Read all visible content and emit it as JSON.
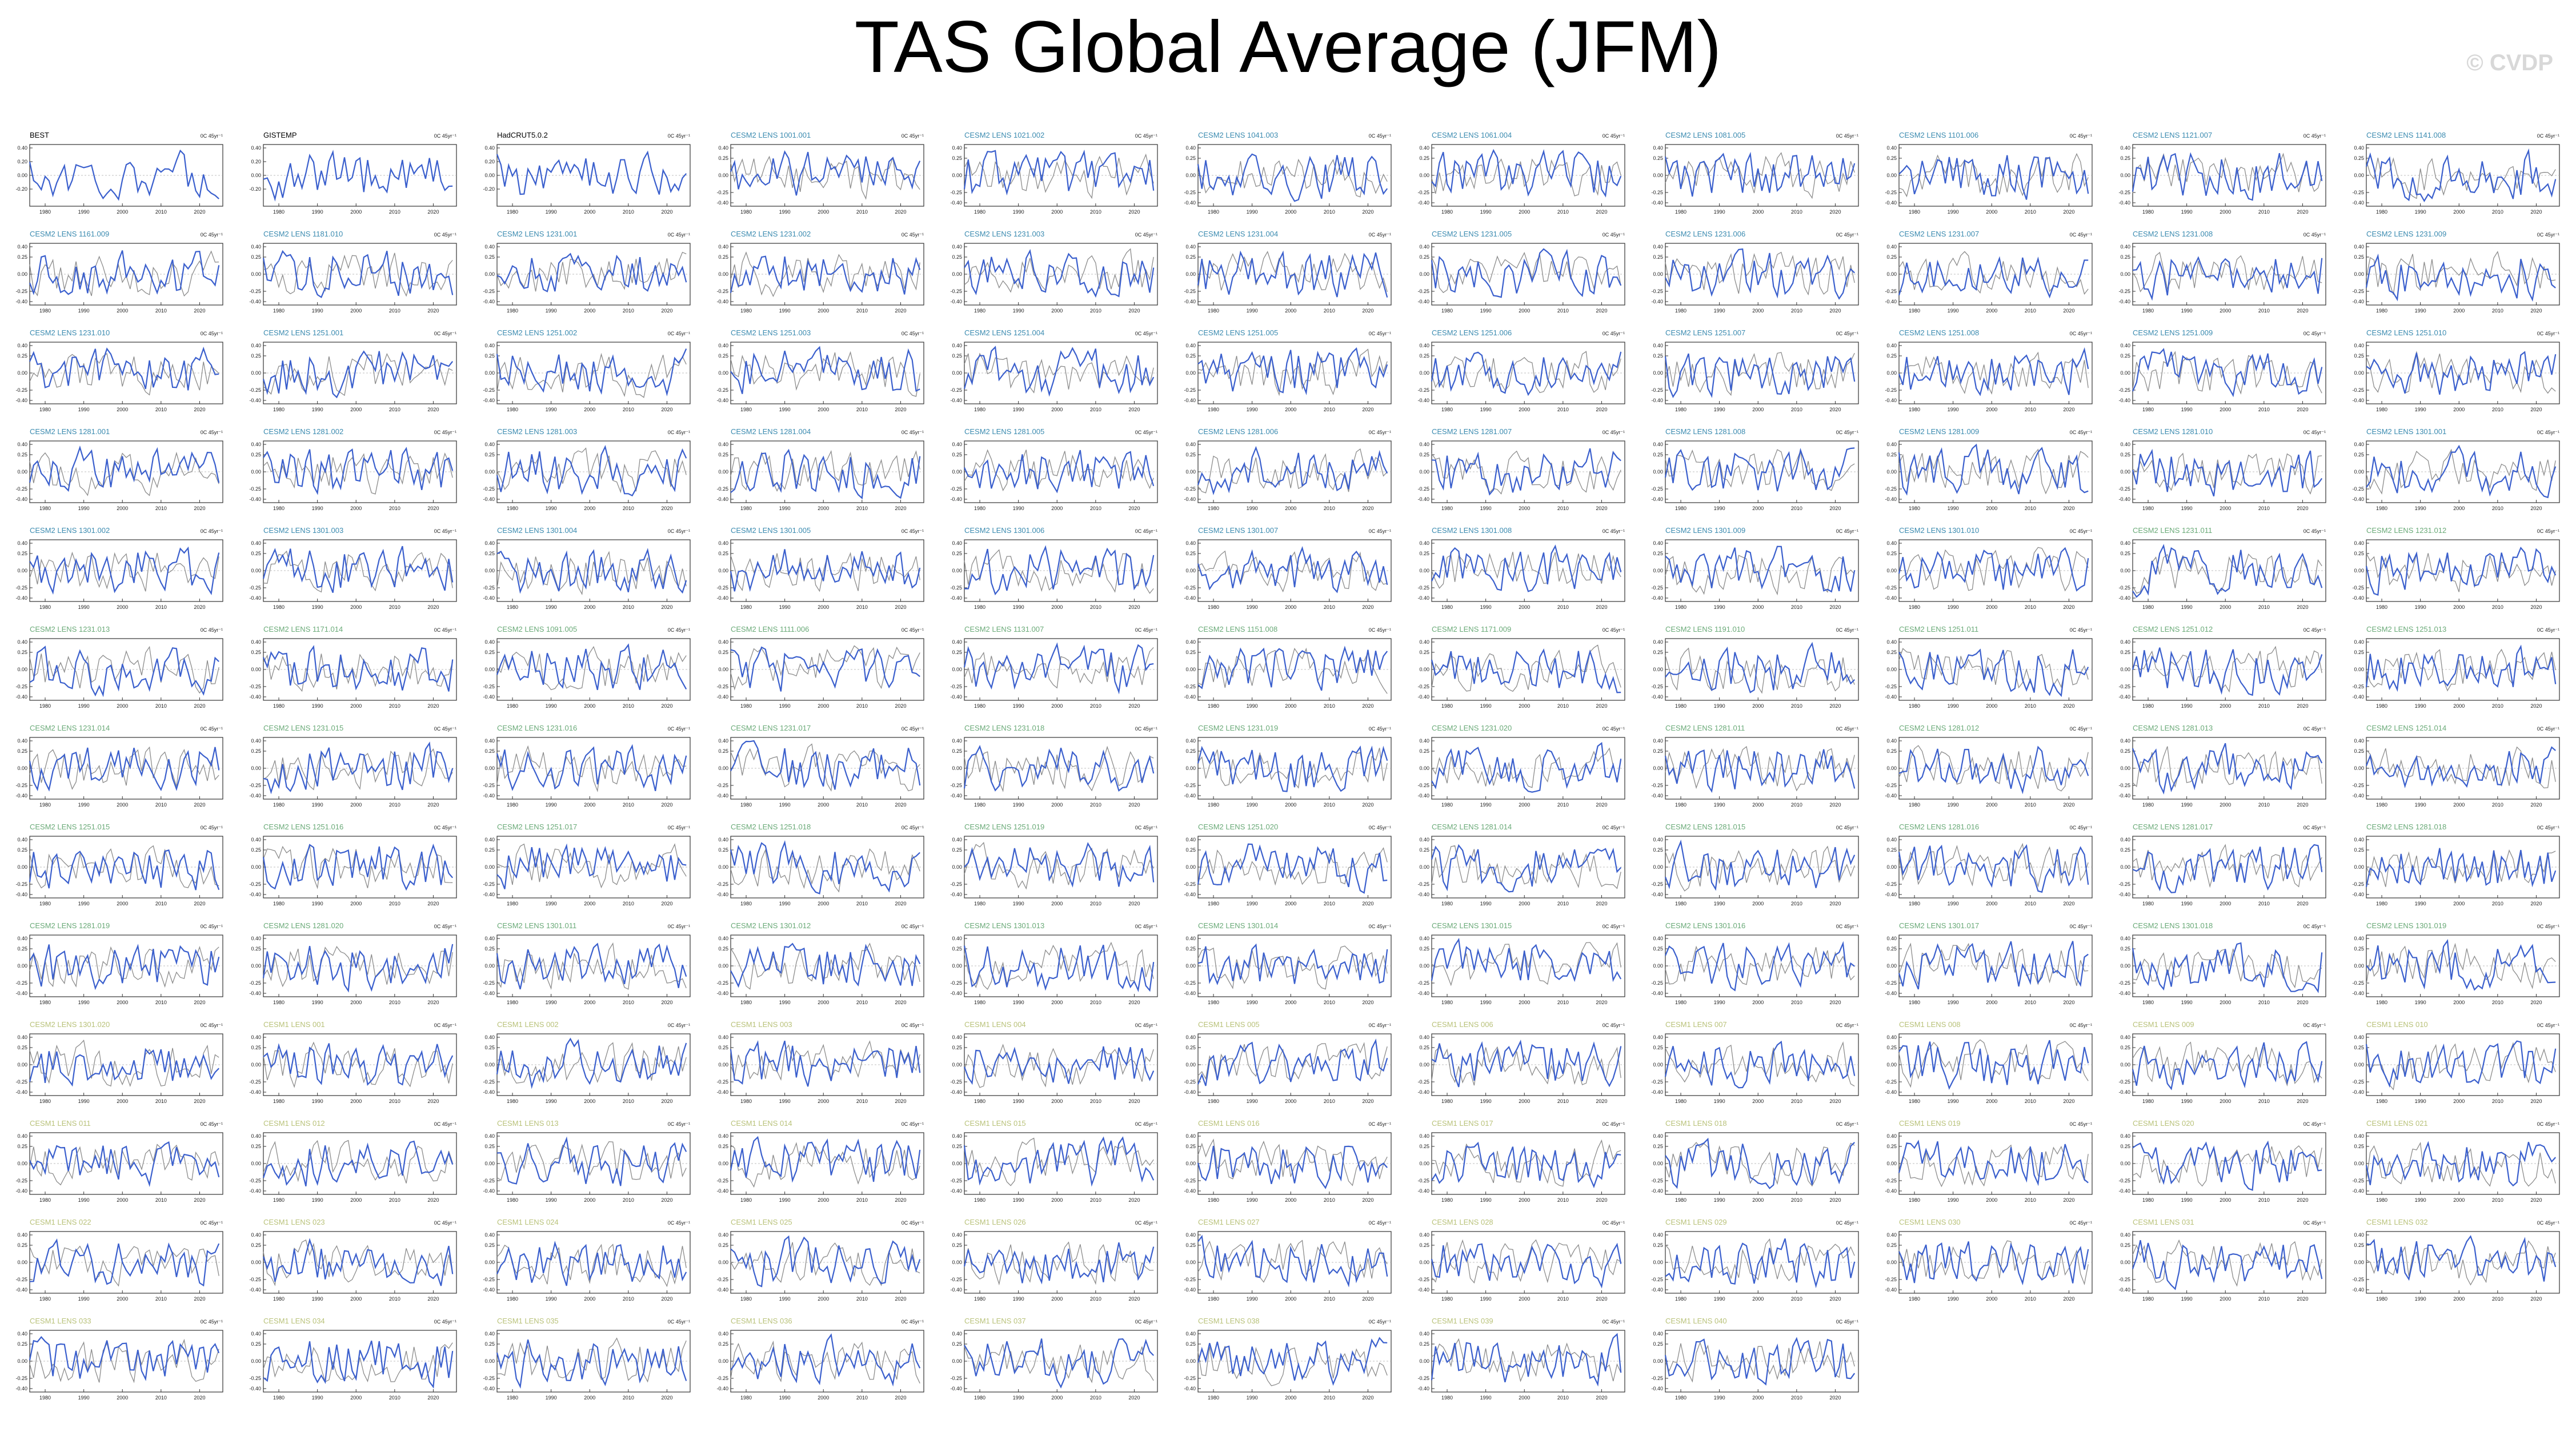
{
  "page": {
    "title": "TAS Global Average (JFM)",
    "watermark": "© CVDP"
  },
  "colors": {
    "observed_line": "#3a5fcd",
    "reference_line": "#8c8c8c",
    "title_obs": "#000000",
    "title_family_1": "#3b8bb0",
    "title_family_2": "#6aaa78",
    "title_family_3": "#b9c27a",
    "frame": "#333333",
    "zero_line": "#aaaaaa"
  },
  "chart_data": {
    "type": "line",
    "layout": "small-multiples",
    "rows": 13,
    "columns": 11,
    "unit_label": "0C 45yr⁻¹",
    "x_ticks": [
      "1980",
      "1990",
      "2000",
      "2010",
      "2020"
    ],
    "xlim": [
      1976,
      2026
    ],
    "y_ticks_short": [
      "0.40",
      "0.20",
      "0.00",
      "-0.20"
    ],
    "y_ticks_full": [
      "0.40",
      "0.25",
      "0.00",
      "-0.25",
      "-0.40"
    ],
    "ylim": [
      -0.45,
      0.45
    ],
    "years_start": 1976,
    "years_count": 50,
    "series_description": "each panel: blue = member time series, gray = ensemble reference",
    "panels": [
      {
        "title": "BEST",
        "family": 0
      },
      {
        "title": "GISTEMP",
        "family": 0
      },
      {
        "title": "HadCRUT5.0.2",
        "family": 0
      },
      {
        "title": "CESM2 LENS 1001.001",
        "family": 1
      },
      {
        "title": "CESM2 LENS 1021.002",
        "family": 1
      },
      {
        "title": "CESM2 LENS 1041.003",
        "family": 1
      },
      {
        "title": "CESM2 LENS 1061.004",
        "family": 1
      },
      {
        "title": "CESM2 LENS 1081.005",
        "family": 1
      },
      {
        "title": "CESM2 LENS 1101.006",
        "family": 1
      },
      {
        "title": "CESM2 LENS 1121.007",
        "family": 1
      },
      {
        "title": "CESM2 LENS 1141.008",
        "family": 1
      },
      {
        "title": "CESM2 LENS 1161.009",
        "family": 1
      },
      {
        "title": "CESM2 LENS 1181.010",
        "family": 1
      },
      {
        "title": "CESM2 LENS 1231.001",
        "family": 1
      },
      {
        "title": "CESM2 LENS 1231.002",
        "family": 1
      },
      {
        "title": "CESM2 LENS 1231.003",
        "family": 1
      },
      {
        "title": "CESM2 LENS 1231.004",
        "family": 1
      },
      {
        "title": "CESM2 LENS 1231.005",
        "family": 1
      },
      {
        "title": "CESM2 LENS 1231.006",
        "family": 1
      },
      {
        "title": "CESM2 LENS 1231.007",
        "family": 1
      },
      {
        "title": "CESM2 LENS 1231.008",
        "family": 1
      },
      {
        "title": "CESM2 LENS 1231.009",
        "family": 1
      },
      {
        "title": "CESM2 LENS 1231.010",
        "family": 1
      },
      {
        "title": "CESM2 LENS 1251.001",
        "family": 1
      },
      {
        "title": "CESM2 LENS 1251.002",
        "family": 1
      },
      {
        "title": "CESM2 LENS 1251.003",
        "family": 1
      },
      {
        "title": "CESM2 LENS 1251.004",
        "family": 1
      },
      {
        "title": "CESM2 LENS 1251.005",
        "family": 1
      },
      {
        "title": "CESM2 LENS 1251.006",
        "family": 1
      },
      {
        "title": "CESM2 LENS 1251.007",
        "family": 1
      },
      {
        "title": "CESM2 LENS 1251.008",
        "family": 1
      },
      {
        "title": "CESM2 LENS 1251.009",
        "family": 1
      },
      {
        "title": "CESM2 LENS 1251.010",
        "family": 1
      },
      {
        "title": "CESM2 LENS 1281.001",
        "family": 1
      },
      {
        "title": "CESM2 LENS 1281.002",
        "family": 1
      },
      {
        "title": "CESM2 LENS 1281.003",
        "family": 1
      },
      {
        "title": "CESM2 LENS 1281.004",
        "family": 1
      },
      {
        "title": "CESM2 LENS 1281.005",
        "family": 1
      },
      {
        "title": "CESM2 LENS 1281.006",
        "family": 1
      },
      {
        "title": "CESM2 LENS 1281.007",
        "family": 1
      },
      {
        "title": "CESM2 LENS 1281.008",
        "family": 1
      },
      {
        "title": "CESM2 LENS 1281.009",
        "family": 1
      },
      {
        "title": "CESM2 LENS 1281.010",
        "family": 1
      },
      {
        "title": "CESM2 LENS 1301.001",
        "family": 1
      },
      {
        "title": "CESM2 LENS 1301.002",
        "family": 1
      },
      {
        "title": "CESM2 LENS 1301.003",
        "family": 1
      },
      {
        "title": "CESM2 LENS 1301.004",
        "family": 1
      },
      {
        "title": "CESM2 LENS 1301.005",
        "family": 1
      },
      {
        "title": "CESM2 LENS 1301.006",
        "family": 1
      },
      {
        "title": "CESM2 LENS 1301.007",
        "family": 1
      },
      {
        "title": "CESM2 LENS 1301.008",
        "family": 1
      },
      {
        "title": "CESM2 LENS 1301.009",
        "family": 1
      },
      {
        "title": "CESM2 LENS 1301.010",
        "family": 1
      },
      {
        "title": "CESM2 LENS 1231.011",
        "family": 2
      },
      {
        "title": "CESM2 LENS 1231.012",
        "family": 2
      },
      {
        "title": "CESM2 LENS 1231.013",
        "family": 2
      },
      {
        "title": "CESM2 LENS 1171.014",
        "family": 2
      },
      {
        "title": "CESM2 LENS 1091.005",
        "family": 2
      },
      {
        "title": "CESM2 LENS 1111.006",
        "family": 2
      },
      {
        "title": "CESM2 LENS 1131.007",
        "family": 2
      },
      {
        "title": "CESM2 LENS 1151.008",
        "family": 2
      },
      {
        "title": "CESM2 LENS 1171.009",
        "family": 2
      },
      {
        "title": "CESM2 LENS 1191.010",
        "family": 2
      },
      {
        "title": "CESM2 LENS 1251.011",
        "family": 2
      },
      {
        "title": "CESM2 LENS 1251.012",
        "family": 2
      },
      {
        "title": "CESM2 LENS 1251.013",
        "family": 2
      },
      {
        "title": "CESM2 LENS 1231.014",
        "family": 2
      },
      {
        "title": "CESM2 LENS 1231.015",
        "family": 2
      },
      {
        "title": "CESM2 LENS 1231.016",
        "family": 2
      },
      {
        "title": "CESM2 LENS 1231.017",
        "family": 2
      },
      {
        "title": "CESM2 LENS 1231.018",
        "family": 2
      },
      {
        "title": "CESM2 LENS 1231.019",
        "family": 2
      },
      {
        "title": "CESM2 LENS 1231.020",
        "family": 2
      },
      {
        "title": "CESM2 LENS 1281.011",
        "family": 2
      },
      {
        "title": "CESM2 LENS 1281.012",
        "family": 2
      },
      {
        "title": "CESM2 LENS 1281.013",
        "family": 2
      },
      {
        "title": "CESM2 LENS 1251.014",
        "family": 2
      },
      {
        "title": "CESM2 LENS 1251.015",
        "family": 2
      },
      {
        "title": "CESM2 LENS 1251.016",
        "family": 2
      },
      {
        "title": "CESM2 LENS 1251.017",
        "family": 2
      },
      {
        "title": "CESM2 LENS 1251.018",
        "family": 2
      },
      {
        "title": "CESM2 LENS 1251.019",
        "family": 2
      },
      {
        "title": "CESM2 LENS 1251.020",
        "family": 2
      },
      {
        "title": "CESM2 LENS 1281.014",
        "family": 2
      },
      {
        "title": "CESM2 LENS 1281.015",
        "family": 2
      },
      {
        "title": "CESM2 LENS 1281.016",
        "family": 2
      },
      {
        "title": "CESM2 LENS 1281.017",
        "family": 2
      },
      {
        "title": "CESM2 LENS 1281.018",
        "family": 2
      },
      {
        "title": "CESM2 LENS 1281.019",
        "family": 2
      },
      {
        "title": "CESM2 LENS 1281.020",
        "family": 2
      },
      {
        "title": "CESM2 LENS 1301.011",
        "family": 2
      },
      {
        "title": "CESM2 LENS 1301.012",
        "family": 2
      },
      {
        "title": "CESM2 LENS 1301.013",
        "family": 2
      },
      {
        "title": "CESM2 LENS 1301.014",
        "family": 2
      },
      {
        "title": "CESM2 LENS 1301.015",
        "family": 2
      },
      {
        "title": "CESM2 LENS 1301.016",
        "family": 2
      },
      {
        "title": "CESM2 LENS 1301.017",
        "family": 2
      },
      {
        "title": "CESM2 LENS 1301.018",
        "family": 2
      },
      {
        "title": "CESM2 LENS 1301.019",
        "family": 2
      },
      {
        "title": "CESM2 LENS 1301.020",
        "family": 3
      },
      {
        "title": "CESM1 LENS 001",
        "family": 3
      },
      {
        "title": "CESM1 LENS 002",
        "family": 3
      },
      {
        "title": "CESM1 LENS 003",
        "family": 3
      },
      {
        "title": "CESM1 LENS 004",
        "family": 3
      },
      {
        "title": "CESM1 LENS 005",
        "family": 3
      },
      {
        "title": "CESM1 LENS 006",
        "family": 3
      },
      {
        "title": "CESM1 LENS 007",
        "family": 3
      },
      {
        "title": "CESM1 LENS 008",
        "family": 3
      },
      {
        "title": "CESM1 LENS 009",
        "family": 3
      },
      {
        "title": "CESM1 LENS 010",
        "family": 3
      },
      {
        "title": "CESM1 LENS 011",
        "family": 3
      },
      {
        "title": "CESM1 LENS 012",
        "family": 3
      },
      {
        "title": "CESM1 LENS 013",
        "family": 3
      },
      {
        "title": "CESM1 LENS 014",
        "family": 3
      },
      {
        "title": "CESM1 LENS 015",
        "family": 3
      },
      {
        "title": "CESM1 LENS 016",
        "family": 3
      },
      {
        "title": "CESM1 LENS 017",
        "family": 3
      },
      {
        "title": "CESM1 LENS 018",
        "family": 3
      },
      {
        "title": "CESM1 LENS 019",
        "family": 3
      },
      {
        "title": "CESM1 LENS 020",
        "family": 3
      },
      {
        "title": "CESM1 LENS 021",
        "family": 3
      },
      {
        "title": "CESM1 LENS 022",
        "family": 3
      },
      {
        "title": "CESM1 LENS 023",
        "family": 3
      },
      {
        "title": "CESM1 LENS 024",
        "family": 3
      },
      {
        "title": "CESM1 LENS 025",
        "family": 3
      },
      {
        "title": "CESM1 LENS 026",
        "family": 3
      },
      {
        "title": "CESM1 LENS 027",
        "family": 3
      },
      {
        "title": "CESM1 LENS 028",
        "family": 3
      },
      {
        "title": "CESM1 LENS 029",
        "family": 3
      },
      {
        "title": "CESM1 LENS 030",
        "family": 3
      },
      {
        "title": "CESM1 LENS 031",
        "family": 3
      },
      {
        "title": "CESM1 LENS 032",
        "family": 3
      },
      {
        "title": "CESM1 LENS 033",
        "family": 3
      },
      {
        "title": "CESM1 LENS 034",
        "family": 3
      },
      {
        "title": "CESM1 LENS 035",
        "family": 3
      },
      {
        "title": "CESM1 LENS 036",
        "family": 3
      },
      {
        "title": "CESM1 LENS 037",
        "family": 3
      },
      {
        "title": "CESM1 LENS 038",
        "family": 3
      },
      {
        "title": "CESM1 LENS 039",
        "family": 3
      },
      {
        "title": "CESM1 LENS 040",
        "family": 3
      }
    ]
  }
}
